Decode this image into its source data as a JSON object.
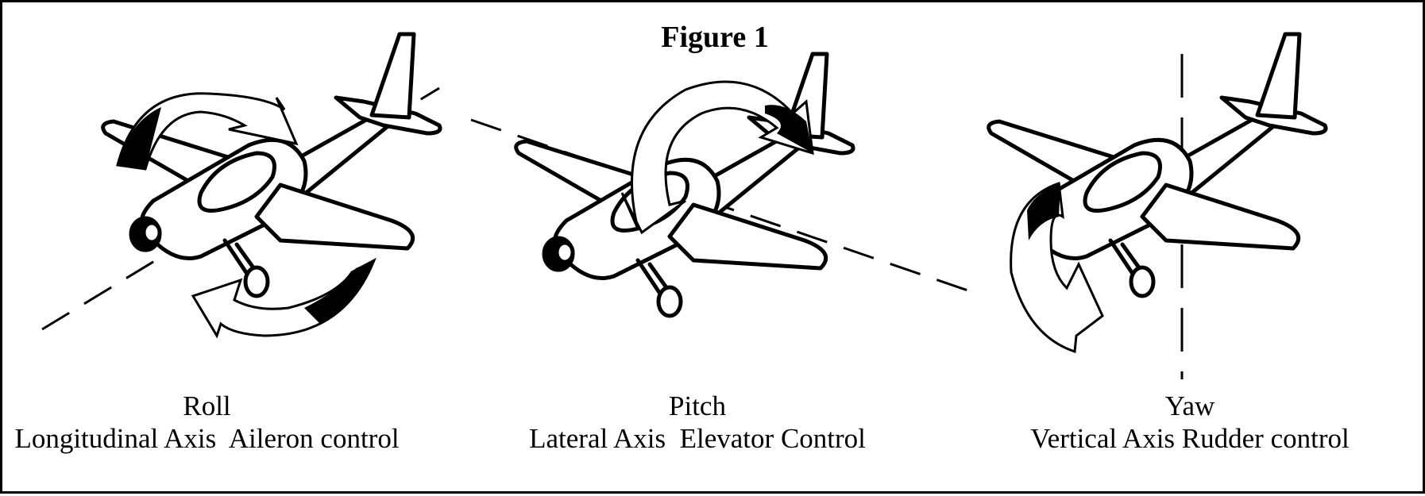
{
  "title": "Figure 1",
  "panels": [
    {
      "name": "Roll",
      "subtitle": "Longitudinal Axis  Aileron control"
    },
    {
      "name": "Pitch",
      "subtitle": "Lateral Axis  Elevator Control"
    },
    {
      "name": "Yaw",
      "subtitle": "Vertical Axis Rudder control"
    }
  ]
}
